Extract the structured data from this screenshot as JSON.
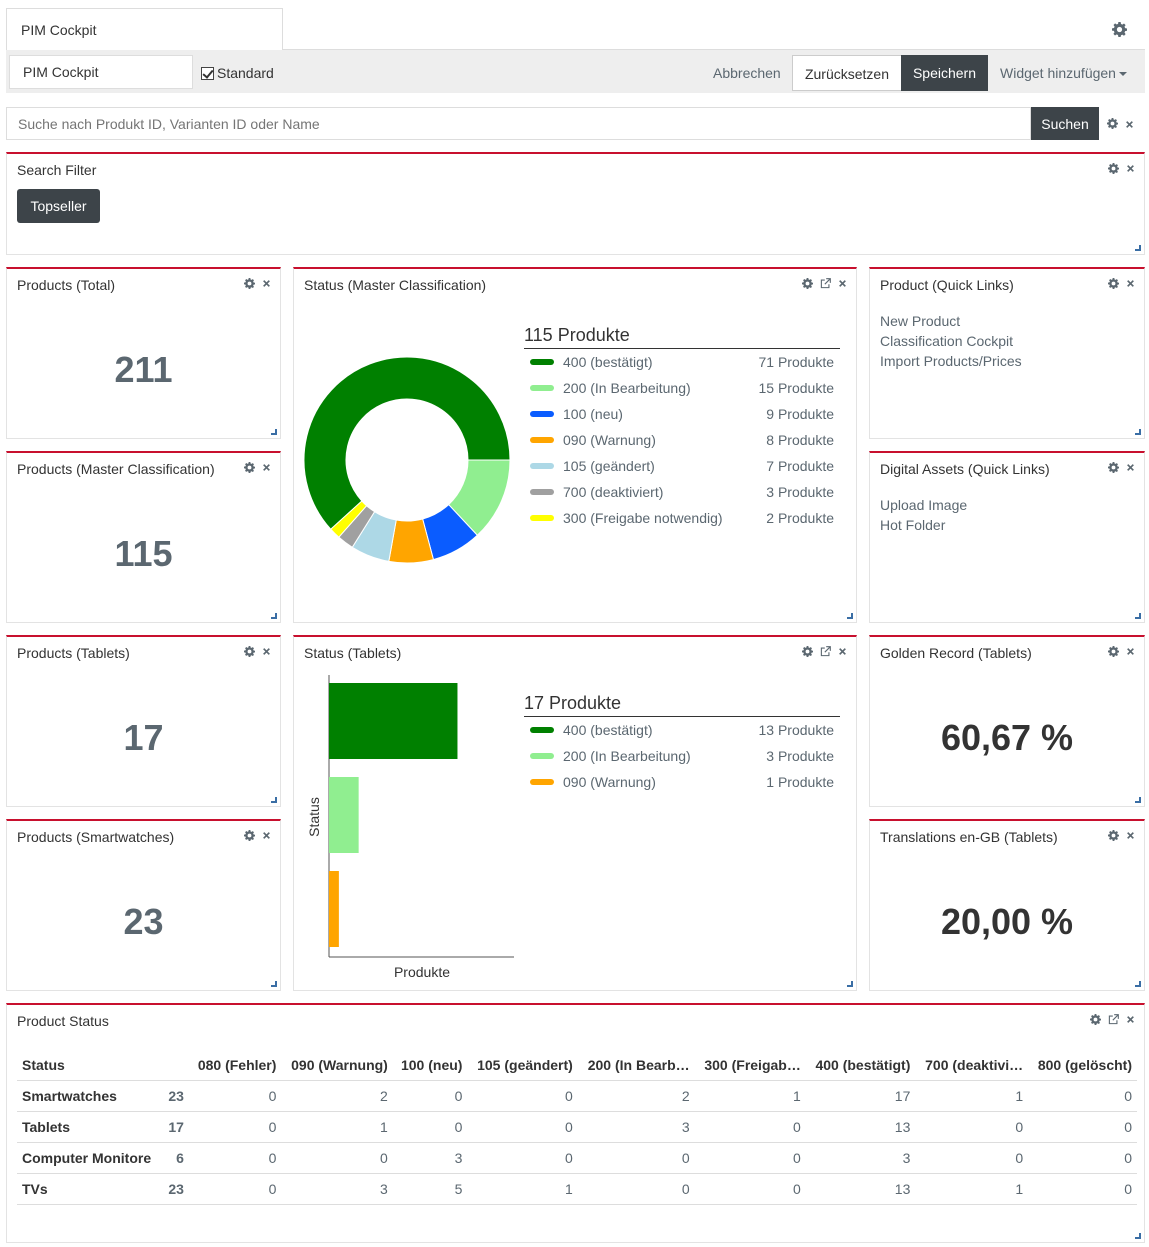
{
  "tab": {
    "title": "PIM Cockpit"
  },
  "toolbar": {
    "name_value": "PIM Cockpit",
    "standard_label": "Standard",
    "cancel": "Abbrechen",
    "reset": "Zurücksetzen",
    "save": "Speichern",
    "add_widget": "Widget hinzufügen"
  },
  "search": {
    "placeholder": "Suche nach Produkt ID, Varianten ID oder Name",
    "button": "Suchen"
  },
  "search_filter": {
    "title": "Search Filter",
    "button": "Topseller"
  },
  "kpis": {
    "total": {
      "title": "Products (Total)",
      "value": "211"
    },
    "master": {
      "title": "Products (Master Classification)",
      "value": "115"
    },
    "tablets": {
      "title": "Products (Tablets)",
      "value": "17"
    },
    "smartwatches": {
      "title": "Products (Smartwatches)",
      "value": "23"
    },
    "golden": {
      "title": "Golden Record (Tablets)",
      "value": "60,67 %"
    },
    "translations": {
      "title": "Translations en-GB (Tablets)",
      "value": "20,00 %"
    }
  },
  "quick_links": {
    "product": {
      "title": "Product (Quick Links)",
      "items": [
        "New Product",
        "Classification Cockpit",
        "Import Products/Prices"
      ]
    },
    "assets": {
      "title": "Digital Assets (Quick Links)",
      "items": [
        "Upload Image",
        "Hot Folder"
      ]
    }
  },
  "status_master": {
    "title": "Status (Master Classification)",
    "legend_title": "115 Produkte",
    "items": [
      {
        "label": "400 (bestätigt)",
        "count": "71 Produkte"
      },
      {
        "label": "200 (In Bearbeitung)",
        "count": "15 Produkte"
      },
      {
        "label": "100 (neu)",
        "count": "9 Produkte"
      },
      {
        "label": "090 (Warnung)",
        "count": "8 Produkte"
      },
      {
        "label": "105 (geändert)",
        "count": "7 Produkte"
      },
      {
        "label": "700 (deaktiviert)",
        "count": "3 Produkte"
      },
      {
        "label": "300 (Freigabe notwendig)",
        "count": "2 Produkte"
      }
    ]
  },
  "status_tablets": {
    "title": "Status (Tablets)",
    "legend_title": "17 Produkte",
    "items": [
      {
        "label": "400 (bestätigt)",
        "count": "13 Produkte"
      },
      {
        "label": "200 (In Bearbeitung)",
        "count": "3 Produkte"
      },
      {
        "label": "090 (Warnung)",
        "count": "1 Produkte"
      }
    ]
  },
  "product_status": {
    "title": "Product Status",
    "headers": [
      "Status",
      "",
      "080 (Fehler)",
      "090 (Warnung)",
      "100 (neu)",
      "105 (geändert)",
      "200 (In Bearb…",
      "300 (Freigab…",
      "400 (bestätigt)",
      "700 (deaktivi…",
      "800 (gelöscht)"
    ],
    "rows": [
      [
        "Smartwatches",
        "23",
        "0",
        "2",
        "0",
        "0",
        "2",
        "1",
        "17",
        "1",
        "0"
      ],
      [
        "Tablets",
        "17",
        "0",
        "1",
        "0",
        "0",
        "3",
        "0",
        "13",
        "0",
        "0"
      ],
      [
        "Computer Monitore",
        "6",
        "0",
        "0",
        "3",
        "0",
        "0",
        "0",
        "3",
        "0",
        "0"
      ],
      [
        "TVs",
        "23",
        "0",
        "3",
        "5",
        "1",
        "0",
        "0",
        "13",
        "1",
        "0"
      ]
    ]
  },
  "colors": {
    "accent_red": "#c8102e",
    "dark_button": "#3d4449",
    "status_400": "#008000",
    "status_200": "#90ee90",
    "status_100": "#0a5cff",
    "status_090": "#ffa500",
    "status_105": "#add8e6",
    "status_700": "#a0a0a0",
    "status_300": "#ffff00"
  },
  "chart_data": [
    {
      "type": "pie",
      "title": "115 Produkte",
      "categories": [
        "400 (bestätigt)",
        "200 (In Bearbeitung)",
        "100 (neu)",
        "090 (Warnung)",
        "105 (geändert)",
        "700 (deaktiviert)",
        "300 (Freigabe notwendig)"
      ],
      "values": [
        71,
        15,
        9,
        8,
        7,
        3,
        2
      ],
      "colors": [
        "#008000",
        "#90ee90",
        "#0a5cff",
        "#ffa500",
        "#add8e6",
        "#a0a0a0",
        "#ffff00"
      ],
      "legend": "right"
    },
    {
      "type": "bar",
      "title": "17 Produkte",
      "categories": [
        "400 (bestätigt)",
        "200 (In Bearbeitung)",
        "090 (Warnung)"
      ],
      "values": [
        13,
        3,
        1
      ],
      "colors": [
        "#008000",
        "#90ee90",
        "#ffa500"
      ],
      "xlabel": "Produkte",
      "ylabel": "Status",
      "xlim": [
        0,
        17
      ],
      "legend": "right"
    }
  ]
}
